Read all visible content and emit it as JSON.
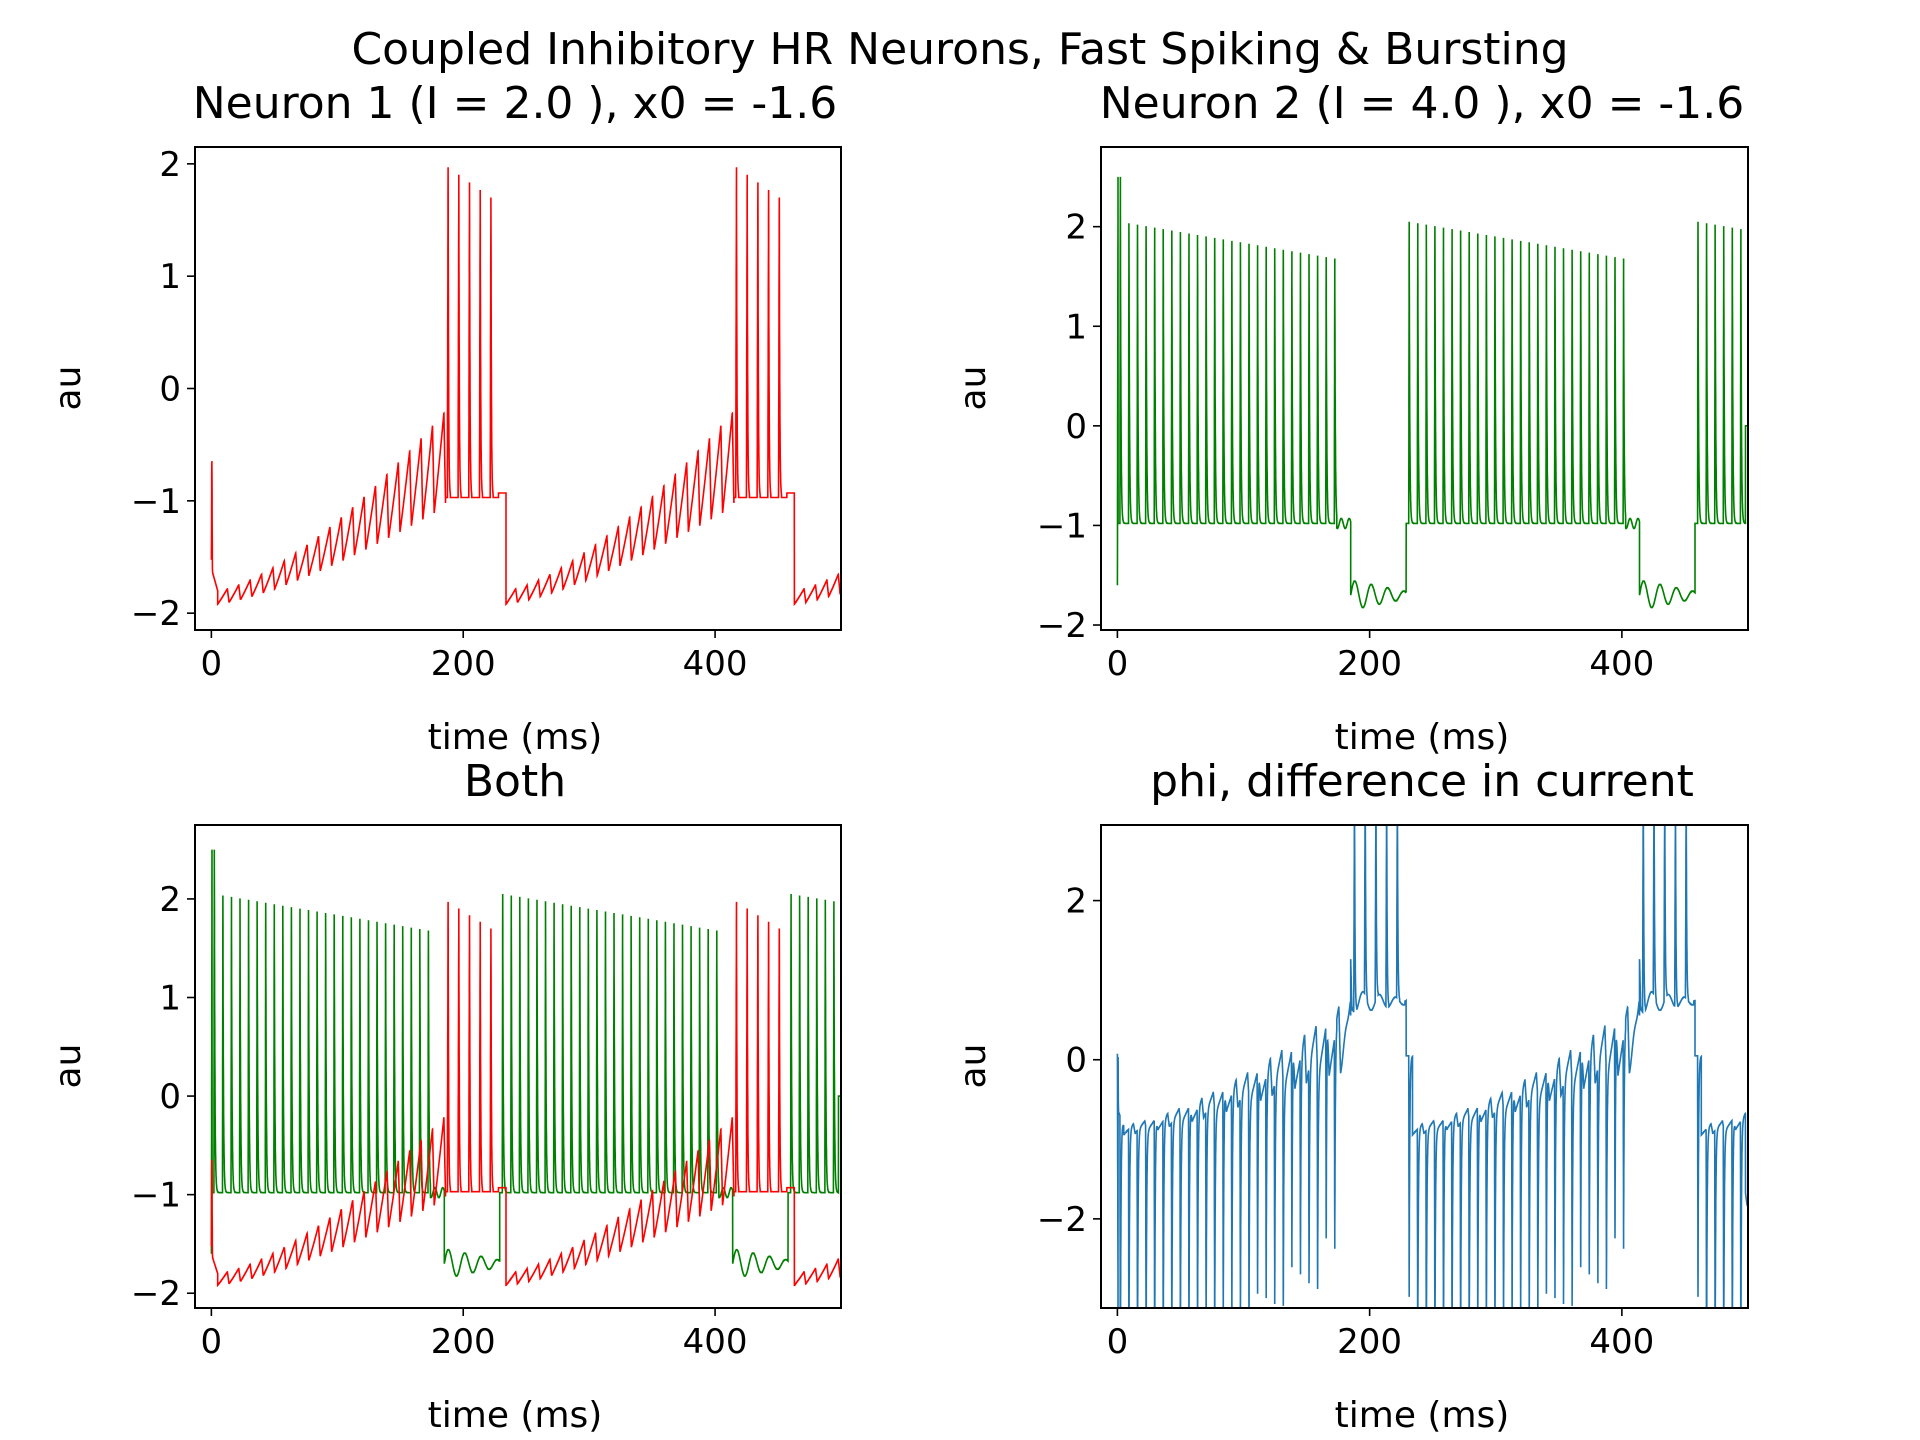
{
  "figure": {
    "suptitle": "Coupled Inhibitory HR Neurons, Fast Spiking & Bursting"
  },
  "colors": {
    "neuron1": "#ff0000",
    "neuron2": "#008000",
    "phi": "#1f77b4",
    "axes": "#000000",
    "background": "#ffffff"
  },
  "chart_data": [
    {
      "id": "neuron1",
      "type": "line",
      "title": "Neuron 1 (I = 2.0 ), x0 = -1.6",
      "xlabel": "time (ms)",
      "ylabel": "au",
      "xlim": [
        -13,
        500
      ],
      "ylim": [
        -2.15,
        2.15
      ],
      "xticks": [
        0,
        200,
        400
      ],
      "yticks": [
        -2,
        -1,
        0,
        1,
        2
      ],
      "xtick_labels": [
        "0",
        "200",
        "400"
      ],
      "ytick_labels": [
        "−2",
        "−1",
        "0",
        "1",
        "2"
      ],
      "grid": false,
      "series": [
        {
          "color": "#ff0000",
          "model": "burster",
          "params": {
            "cycle": 229,
            "start": 5,
            "onset": 186,
            "bend": 228,
            "bend_len": 15,
            "base_start": -1.92,
            "base_end": -1.05,
            "n_sub": 20,
            "sub_amp_start": 0.12,
            "sub_amp_end": 0.85,
            "spike_count": 5,
            "spike_start": 188,
            "spike_end": 222,
            "spike_peak_start": 1.97,
            "spike_peak_end": 1.7,
            "burst_rest": -0.97,
            "plateau": -0.93,
            "initial_x": -1.6,
            "initial_peak": -0.63
          }
        }
      ]
    },
    {
      "id": "neuron2",
      "type": "line",
      "title": "Neuron 2 (I = 4.0 ), x0 = -1.6",
      "xlabel": "time (ms)",
      "ylabel": "au",
      "xlim": [
        -13,
        500
      ],
      "ylim": [
        -2.05,
        2.8
      ],
      "xticks": [
        0,
        200,
        400
      ],
      "yticks": [
        -2,
        -1,
        0,
        1,
        2
      ],
      "xtick_labels": [
        "0",
        "200",
        "400"
      ],
      "ytick_labels": [
        "−2",
        "−1",
        "0",
        "1",
        "2"
      ],
      "grid": false,
      "series": [
        {
          "color": "#008000",
          "model": "spiker",
          "params": {
            "cycle": 229,
            "start": 0,
            "burst_start": 2,
            "burst_end": 172,
            "spike_count": 26,
            "spike_peak_start": 2.05,
            "spike_peak_end": 1.68,
            "first_peak": 2.5,
            "rest": -0.98,
            "inhib_start": 185,
            "inhib_end": 243,
            "inhib_level": -1.7,
            "inhib_wiggle": 0.15,
            "final_spike_end": 498
          }
        }
      ]
    },
    {
      "id": "both",
      "type": "line",
      "title": "Both",
      "xlabel": "time (ms)",
      "ylabel": "au",
      "xlim": [
        -13,
        500
      ],
      "ylim": [
        -2.15,
        2.75
      ],
      "xticks": [
        0,
        200,
        400
      ],
      "yticks": [
        -2,
        -1,
        0,
        1,
        2
      ],
      "xtick_labels": [
        "0",
        "200",
        "400"
      ],
      "ytick_labels": [
        "−2",
        "−1",
        "0",
        "1",
        "2"
      ],
      "grid": false,
      "series": [
        {
          "color": "#008000",
          "model": "spiker",
          "ref": "neuron2"
        },
        {
          "color": "#ff0000",
          "model": "burster",
          "ref": "neuron1"
        }
      ]
    },
    {
      "id": "phi",
      "type": "line",
      "title": "phi, difference in current",
      "xlabel": "time (ms)",
      "ylabel": "au",
      "xlim": [
        -13,
        500
      ],
      "ylim": [
        -3.12,
        2.95
      ],
      "xticks": [
        0,
        200,
        400
      ],
      "yticks": [
        -2,
        0,
        2
      ],
      "xtick_labels": [
        "0",
        "200",
        "400"
      ],
      "ytick_labels": [
        "−2",
        "0",
        "2"
      ],
      "grid": false,
      "series": [
        {
          "color": "#1f77b4",
          "model": "difference",
          "params": {
            "refs": [
              "neuron1",
              "neuron2"
            ],
            "scale": 1.0
          }
        }
      ]
    }
  ]
}
